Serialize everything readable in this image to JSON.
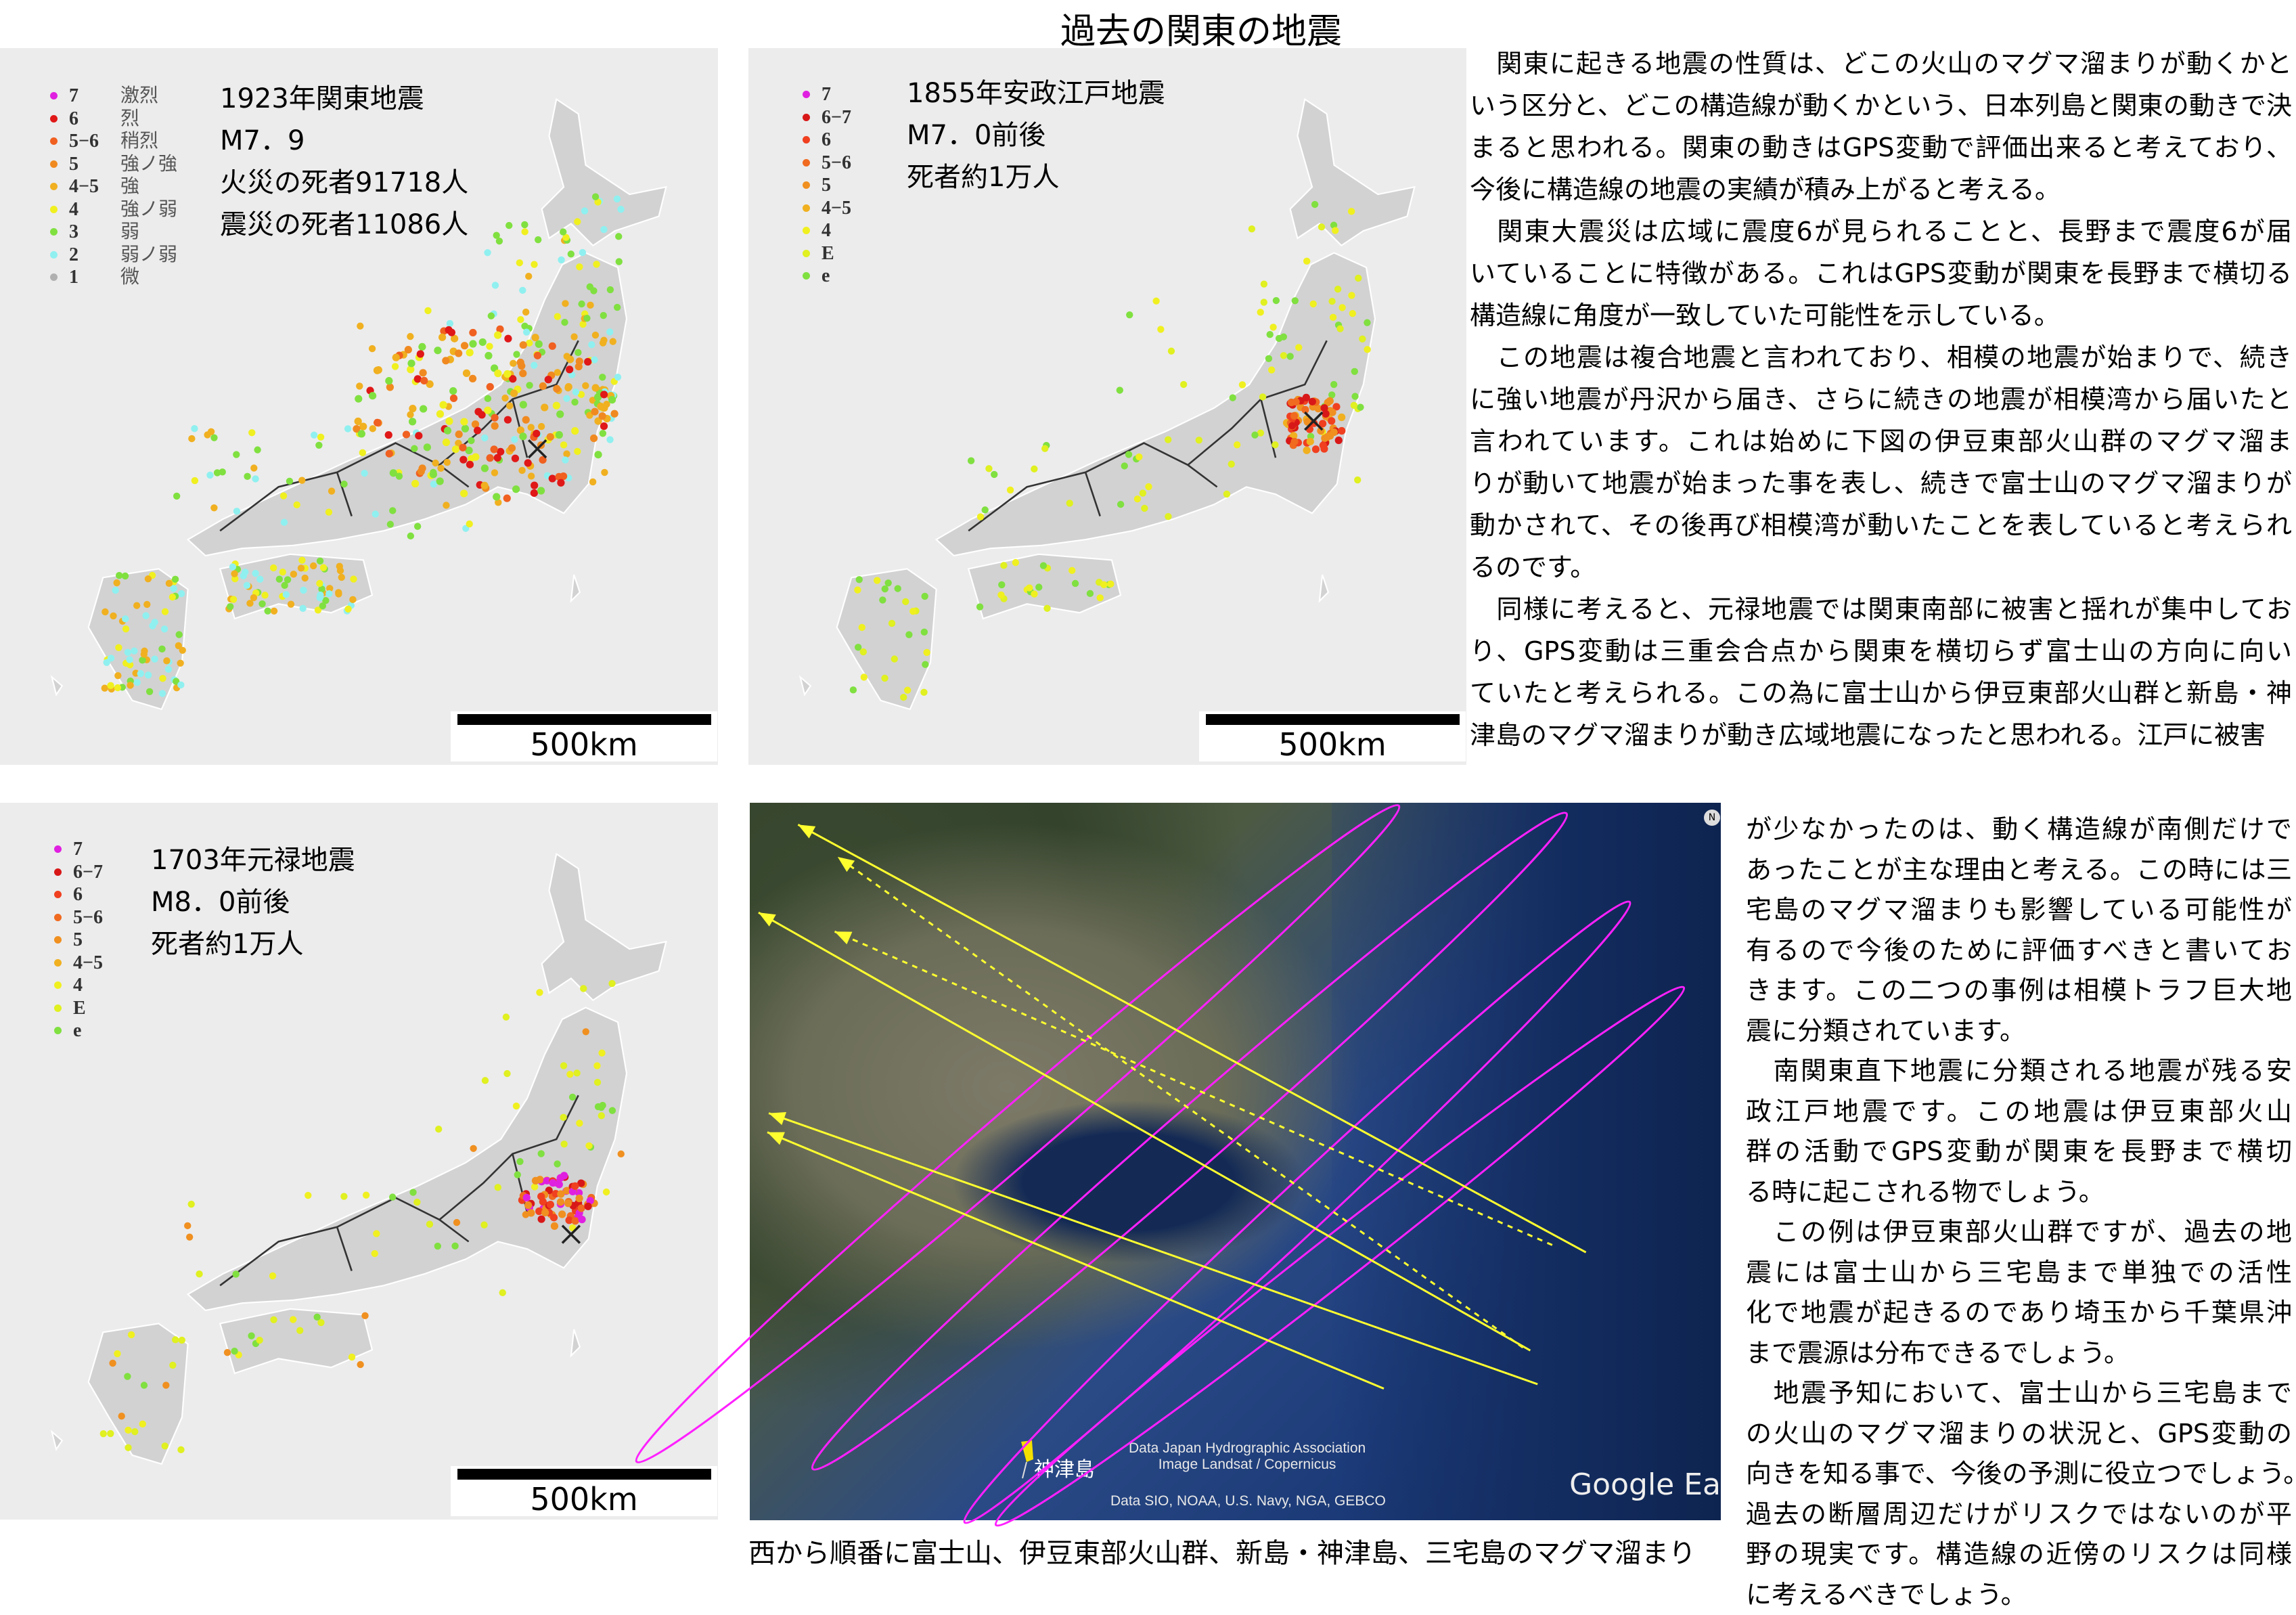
{
  "title": "過去の関東の地震",
  "maps": [
    {
      "legend": [
        {
          "num": "7",
          "label": "激烈",
          "color": "#e020e0"
        },
        {
          "num": "6",
          "label": "烈",
          "color": "#e01818"
        },
        {
          "num": "5−6",
          "label": "稍烈",
          "color": "#f06020"
        },
        {
          "num": "5",
          "label": "強ノ強",
          "color": "#f08a20"
        },
        {
          "num": "4−5",
          "label": "強",
          "color": "#f0b020"
        },
        {
          "num": "4",
          "label": "強ノ弱",
          "color": "#f0f020"
        },
        {
          "num": "3",
          "label": "弱",
          "color": "#80e040"
        },
        {
          "num": "2",
          "label": "弱ノ弱",
          "color": "#90f0f0"
        },
        {
          "num": "1",
          "label": "微",
          "color": "#b0b0b0"
        }
      ],
      "info": [
        "1923年関東地震",
        "M7．9",
        "火災の死者91718人",
        "震災の死者11086人"
      ],
      "scale_label": "500km"
    },
    {
      "legend": [
        {
          "num": "7",
          "color": "#e020e0"
        },
        {
          "num": "6−7",
          "color": "#d81818"
        },
        {
          "num": "6",
          "color": "#f04020"
        },
        {
          "num": "5−6",
          "color": "#f06a20"
        },
        {
          "num": "5",
          "color": "#f09020"
        },
        {
          "num": "4−5",
          "color": "#f0b020"
        },
        {
          "num": "4",
          "color": "#f0f020"
        },
        {
          "num": "E",
          "color": "#e0f020"
        },
        {
          "num": "e",
          "color": "#80e040"
        }
      ],
      "info": [
        "1855年安政江戸地震",
        "M7．0前後",
        "死者約1万人"
      ],
      "scale_label": "500km"
    },
    {
      "legend": [
        {
          "num": "7",
          "color": "#e020e0"
        },
        {
          "num": "6−7",
          "color": "#d81818"
        },
        {
          "num": "6",
          "color": "#f04020"
        },
        {
          "num": "5−6",
          "color": "#f06a20"
        },
        {
          "num": "5",
          "color": "#f09020"
        },
        {
          "num": "4−5",
          "color": "#f0b020"
        },
        {
          "num": "4",
          "color": "#f0f020"
        },
        {
          "num": "E",
          "color": "#e0f020"
        },
        {
          "num": "e",
          "color": "#80e040"
        }
      ],
      "info": [
        "1703年元禄地震",
        "M8．0前後",
        "死者約1万人"
      ],
      "scale_label": "500km"
    }
  ],
  "satellite": {
    "pin_label": "神津島",
    "credit_1": "Data Japan Hydrographic Association",
    "credit_2": "Image Landsat / Copernicus",
    "credit_3": "Data SIO, NOAA, U.S. Navy, NGA, GEBCO",
    "watermark": "Google Ea",
    "compass": "N",
    "ellipse_color": "#ff20ff",
    "arrow_color": "#ffff30"
  },
  "caption": "西から順番に富士山、伊豆東部火山群、新島・神津島、三宅島のマグマ溜まり",
  "text_upper": [
    "　関東に起きる地震の性質は、どこの火山のマグマ溜まりが動くかと",
    "いう区分と、どこの構造線が動くかという、日本列島と関東の動きで決",
    "まると思われる。関東の動きはGPS変動で評価出来ると考えており、",
    "今後に構造線の地震の実績が積み上がると考える。",
    "　関東大震災は広域に震度6が見られることと、長野まで震度6が届",
    "いていることに特徴がある。これはGPS変動が関東を長野まで横切る",
    "構造線に角度が一致していた可能性を示している。",
    "　この地震は複合地震と言われており、相模の地震が始まりで、続き",
    "に強い地震が丹沢から届き、さらに続きの地震が相模湾から届いたと",
    "言われています。これは始めに下図の伊豆東部火山群のマグマ溜ま",
    "りが動いて地震が始まった事を表し、続きで富士山のマグマ溜まりが",
    "動かされて、その後再び相模湾が動いたことを表していると考えられ",
    "るのです。",
    "　同様に考えると、元禄地震では関東南部に被害と揺れが集中してお",
    "り、GPS変動は三重会合点から関東を横切らず富士山の方向に向い",
    "ていたと考えられる。この為に富士山から伊豆東部火山群と新島・神",
    "津島のマグマ溜まりが動き広域地震になったと思われる。江戸に被害"
  ],
  "text_lower": [
    "が少なかったのは、動く構造線が南側だけで",
    "あったことが主な理由と考える。この時には三",
    "宅島のマグマ溜まりも影響している可能性が",
    "有るので今後のために評価すべきと書いてお",
    "きます。この二つの事例は相模トラフ巨大地",
    "震に分類されています。",
    "　南関東直下地震に分類される地震が残る安",
    "政江戸地震です。この地震は伊豆東部火山",
    "群の活動でGPS変動が関東を長野まで横切",
    "る時に起こされる物でしょう。",
    "　この例は伊豆東部火山群ですが、過去の地",
    "震には富士山から三宅島まで単独での活性",
    "化で地震が起きるのであり埼玉から千葉県沖",
    "まで震源は分布できるでしょう。",
    "　地震予知において、富士山から三宅島まで",
    "の火山のマグマ溜まりの状況と、GPS変動の",
    "向きを知る事で、今後の予測に役立つでしょう。",
    "過去の断層周辺だけがリスクではないのが平",
    "野の現実です。構造線の近傍のリスクは同様",
    "に考えるべきでしょう。"
  ]
}
